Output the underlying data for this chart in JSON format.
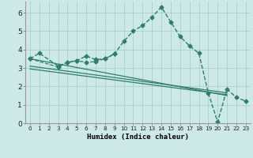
{
  "xlabel": "Humidex (Indice chaleur)",
  "background_color": "#cce8e8",
  "grid_color": "#aacece",
  "line_color": "#2e7d6e",
  "ylim": [
    0,
    6.6
  ],
  "xlim": [
    -0.5,
    23.5
  ],
  "yticks": [
    0,
    1,
    2,
    3,
    4,
    5,
    6
  ],
  "xticks": [
    0,
    1,
    2,
    3,
    4,
    5,
    6,
    7,
    8,
    9,
    10,
    11,
    12,
    13,
    14,
    15,
    16,
    17,
    18,
    19,
    20,
    21,
    22,
    23
  ],
  "series_upper": {
    "x": [
      0,
      1,
      3,
      4,
      5,
      6,
      7,
      8,
      9,
      10,
      11,
      12,
      13,
      14,
      15,
      16,
      17,
      18,
      19,
      20,
      21,
      22,
      23
    ],
    "y": [
      3.5,
      3.8,
      3.1,
      3.3,
      3.4,
      3.65,
      3.45,
      3.5,
      3.75,
      4.45,
      5.0,
      5.3,
      5.75,
      6.3,
      5.5,
      4.7,
      4.2,
      3.8,
      1.65,
      0.07,
      1.85,
      1.4,
      1.2
    ]
  },
  "series_lower_wavy": {
    "x": [
      0,
      3,
      4,
      5,
      6,
      7,
      8,
      9
    ],
    "y": [
      3.5,
      3.05,
      3.3,
      3.4,
      3.3,
      3.35,
      3.5,
      3.78
    ]
  },
  "lines": [
    {
      "x0": 0,
      "y0": 3.5,
      "x1": 21,
      "y1": 1.5
    },
    {
      "x0": 0,
      "y0": 3.1,
      "x1": 21,
      "y1": 1.65
    },
    {
      "x0": 0,
      "y0": 2.95,
      "x1": 21,
      "y1": 1.55
    }
  ]
}
